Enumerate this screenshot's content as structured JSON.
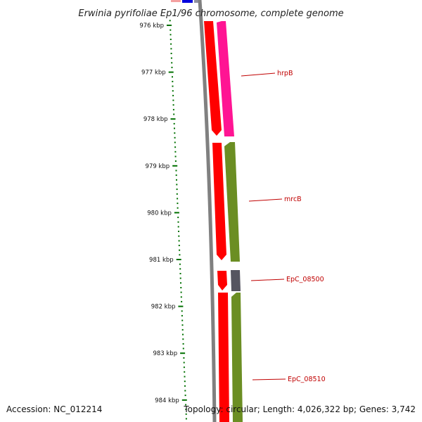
{
  "title": "Erwinia pyrifoliae Ep1/96 chromosome, complete genome",
  "accession_text": "Accession: NC_012214",
  "summary_text": "Topology: circular; Length: 4,026,322 bp; Genes: 3,742",
  "colors": {
    "backbone": "#808080",
    "forward_cds": "#ff0000",
    "reverse_pink": "#ff1493",
    "reverse_olive": "#6b8e23",
    "reverse_gray": "#555560",
    "tick_green": "#007000",
    "label_red": "#c00000",
    "top_blue": "#0000dd",
    "top_pink": "#f08080"
  },
  "kbp_ticks": [
    {
      "label": "976 kbp",
      "kbp": 976
    },
    {
      "label": "977 kbp",
      "kbp": 977
    },
    {
      "label": "978 kbp",
      "kbp": 978
    },
    {
      "label": "979 kbp",
      "kbp": 979
    },
    {
      "label": "980 kbp",
      "kbp": 980
    },
    {
      "label": "981 kbp",
      "kbp": 981
    },
    {
      "label": "982 kbp",
      "kbp": 982
    },
    {
      "label": "983 kbp",
      "kbp": 983
    },
    {
      "label": "984 kbp",
      "kbp": 984
    }
  ],
  "gene_labels": [
    {
      "label": "hrpB"
    },
    {
      "label": "mrcB"
    },
    {
      "label": "EpC_08500"
    },
    {
      "label": "EpC_08510"
    }
  ]
}
